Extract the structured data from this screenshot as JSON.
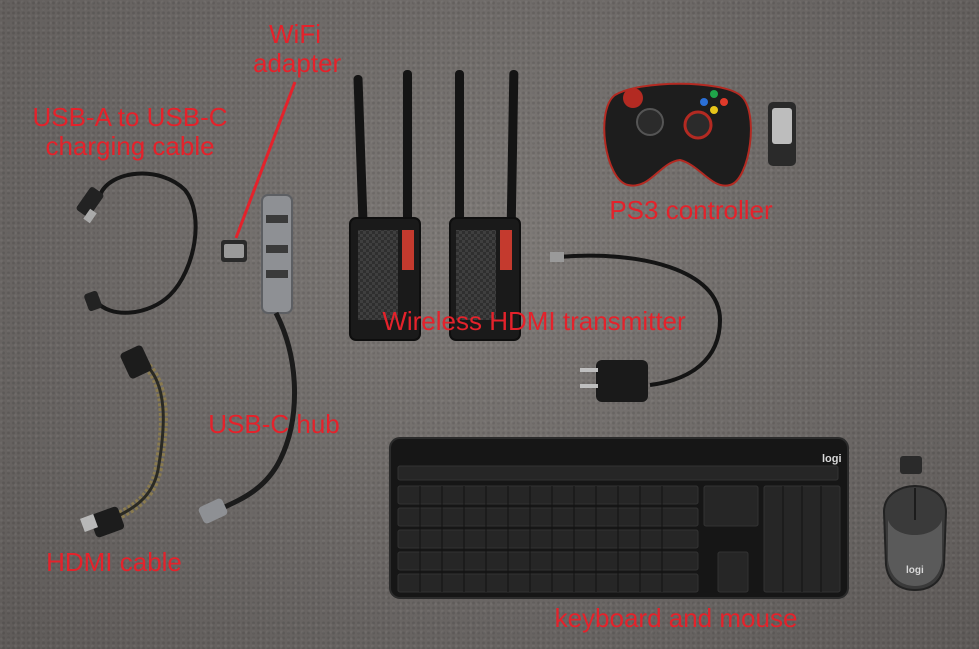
{
  "labels": {
    "wifi": {
      "line1": "WiFi",
      "line2": "adapter"
    },
    "usb_cable": {
      "line1": "USB-A to USB-C",
      "line2": "charging cable"
    },
    "ps3": "PS3 controller",
    "hdmi_tx": "Wireless HDMI transmitter",
    "usbc_hub": "USB-C hub",
    "hdmi_cable": "HDMI cable",
    "kbd_mouse": "keyboard and mouse"
  },
  "device_text": {
    "keyboard_brand": "logi",
    "mouse_brand": "logi"
  },
  "colors": {
    "label_red": "#e4222b",
    "carpet": "#6f6b69",
    "device_black": "#1a1a1a",
    "hub_silver": "#8e9094"
  }
}
